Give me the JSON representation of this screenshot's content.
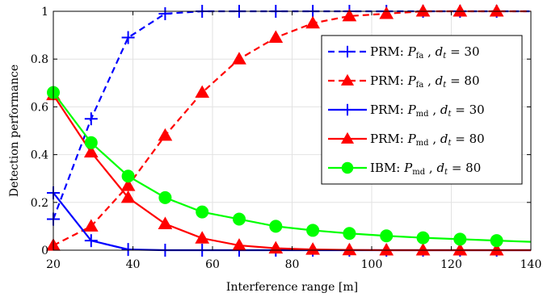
{
  "chart_data": {
    "type": "line",
    "xlabel": "Interference range [m]",
    "ylabel": "Detection performance",
    "xlim": [
      20,
      140
    ],
    "ylim": [
      0,
      1
    ],
    "xticks": [
      20,
      40,
      60,
      80,
      100,
      120,
      140
    ],
    "yticks": [
      0,
      0.2,
      0.4,
      0.6,
      0.8,
      1
    ],
    "xtick_labels": [
      "20",
      "40",
      "60",
      "80",
      "100",
      "120",
      "140"
    ],
    "ytick_labels": [
      "0",
      "0.2",
      "0.4",
      "0.6",
      "0.8",
      "1"
    ],
    "grid": true,
    "legend_position": "top-right",
    "series": [
      {
        "name": "PRM: Pfa , dt = 30",
        "legend": {
          "prefix": "PRM: ",
          "sym": "P",
          "sub": "fa",
          "mid": " , ",
          "var": "d",
          "varsub": "t",
          "val": " = 30"
        },
        "color": "#0000ff",
        "dash": true,
        "marker": "plus",
        "x": [
          20,
          29.5,
          38.8,
          48.1,
          57.4,
          66.7,
          75.9,
          85.2,
          94.4,
          103.7,
          112.9,
          122.2,
          131.4,
          140
        ],
        "values": [
          0.13,
          0.55,
          0.89,
          0.99,
          1.0,
          1.0,
          1.0,
          1.0,
          1.0,
          1.0,
          1.0,
          1.0,
          1.0,
          1.0
        ]
      },
      {
        "name": "PRM: Pfa , dt = 80",
        "legend": {
          "prefix": "PRM: ",
          "sym": "P",
          "sub": "fa",
          "mid": " , ",
          "var": "d",
          "varsub": "t",
          "val": " = 80"
        },
        "color": "#ff0000",
        "dash": true,
        "marker": "triangle",
        "x": [
          20,
          29.5,
          38.8,
          48.1,
          57.4,
          66.7,
          75.9,
          85.2,
          94.4,
          103.7,
          112.9,
          122.2,
          131.4,
          140
        ],
        "values": [
          0.02,
          0.1,
          0.27,
          0.48,
          0.66,
          0.8,
          0.89,
          0.95,
          0.98,
          0.99,
          1.0,
          1.0,
          1.0,
          1.0
        ]
      },
      {
        "name": "PRM: Pmd , dt = 30",
        "legend": {
          "prefix": "PRM: ",
          "sym": "P",
          "sub": "md",
          "mid": " , ",
          "var": "d",
          "varsub": "t",
          "val": " = 30"
        },
        "color": "#0000ff",
        "dash": false,
        "marker": "plus",
        "x": [
          20,
          29.5,
          38.8,
          48.1,
          57.4,
          66.7,
          75.9,
          85.2,
          94.4,
          103.7,
          112.9,
          122.2,
          131.4,
          140
        ],
        "values": [
          0.24,
          0.04,
          0.003,
          0.0,
          0.0,
          0.0,
          0.0,
          0.0,
          0.0,
          0.0,
          0.0,
          0.0,
          0.0,
          0.0
        ]
      },
      {
        "name": "PRM: Pmd , dt = 80",
        "legend": {
          "prefix": "PRM: ",
          "sym": "P",
          "sub": "md",
          "mid": " , ",
          "var": "d",
          "varsub": "t",
          "val": " = 80"
        },
        "color": "#ff0000",
        "dash": false,
        "marker": "triangle",
        "x": [
          20,
          29.5,
          38.8,
          48.1,
          57.4,
          66.7,
          75.9,
          85.2,
          94.4,
          103.7,
          112.9,
          122.2,
          131.4,
          140
        ],
        "values": [
          0.65,
          0.41,
          0.22,
          0.11,
          0.05,
          0.02,
          0.008,
          0.003,
          0.001,
          0.0,
          0.0,
          0.0,
          0.0,
          0.0
        ]
      },
      {
        "name": "IBM: Pmd , dt = 80",
        "legend": {
          "prefix": "IBM: ",
          "sym": "P",
          "sub": "md",
          "mid": " , ",
          "var": "d",
          "varsub": "t",
          "val": " = 80"
        },
        "color": "#00ff00",
        "dash": false,
        "marker": "circle",
        "x": [
          20,
          29.5,
          38.8,
          48.1,
          57.4,
          66.7,
          75.9,
          85.2,
          94.4,
          103.7,
          112.9,
          122.2,
          131.4,
          140
        ],
        "values": [
          0.66,
          0.45,
          0.31,
          0.22,
          0.16,
          0.13,
          0.1,
          0.083,
          0.07,
          0.06,
          0.052,
          0.046,
          0.04,
          0.035
        ]
      }
    ]
  }
}
